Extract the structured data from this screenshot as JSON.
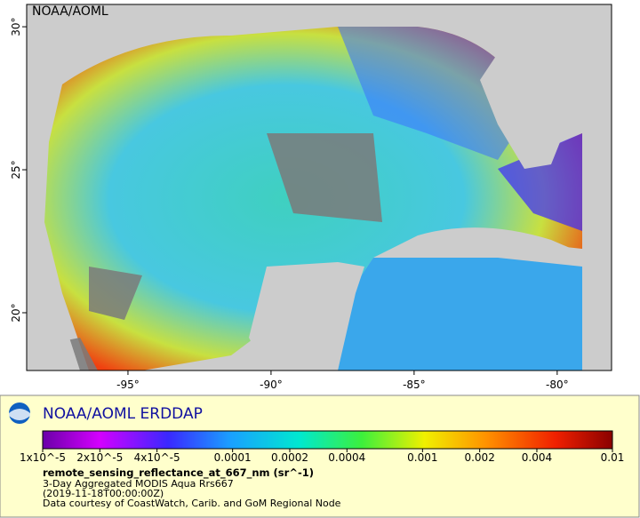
{
  "map": {
    "label": "NOAA/AOML",
    "lonlim": [
      -98.54,
      -78.1
    ],
    "latlim": [
      17.98,
      30.78
    ],
    "lon_ticks": [
      {
        "value": -95,
        "label": "-95°"
      },
      {
        "value": -90,
        "label": "-90°"
      },
      {
        "value": -85,
        "label": "-85°"
      },
      {
        "value": -80,
        "label": "-80°"
      }
    ],
    "lat_ticks": [
      {
        "value": 20,
        "label": "20°"
      },
      {
        "value": 25,
        "label": "25°"
      },
      {
        "value": 30,
        "label": "30°"
      }
    ]
  },
  "legend": {
    "brand": "NOAA/AOML ERDDAP",
    "colorbar": {
      "scale": "log",
      "range": [
        1e-05,
        0.01
      ],
      "ticks": [
        {
          "value": 1e-05,
          "label": "1x10^-5"
        },
        {
          "value": 2e-05,
          "label": "2x10^-5"
        },
        {
          "value": 4e-05,
          "label": "4x10^-5"
        },
        {
          "value": 0.0001,
          "label": "0.0001"
        },
        {
          "value": 0.0002,
          "label": "0.0002"
        },
        {
          "value": 0.0004,
          "label": "0.0004"
        },
        {
          "value": 0.001,
          "label": "0.001"
        },
        {
          "value": 0.002,
          "label": "0.002"
        },
        {
          "value": 0.004,
          "label": "0.004"
        },
        {
          "value": 0.01,
          "label": "0.01"
        }
      ]
    },
    "variable": "remote_sensing_reflectance_at_667_nm (sr^-1)",
    "dataset": "3-Day Aggregated MODIS Aqua Rrs667",
    "time": "(2019-11-18T00:00:00Z)",
    "credit": "Data courtesy of CoastWatch, Carib. and GoM Regional Node"
  }
}
